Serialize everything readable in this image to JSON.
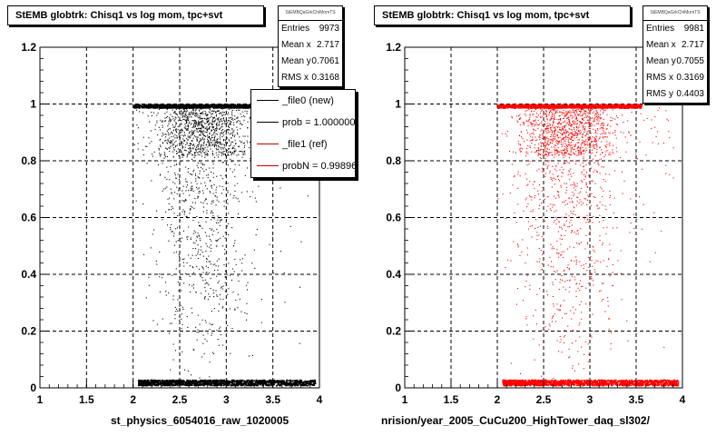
{
  "panels": [
    {
      "title": "StEMB globtrk: Chisq1 vs log mom, tpc+svt",
      "stats": {
        "header": "StEMBQaGrkChiMomTS",
        "rows": [
          {
            "label": "Entries",
            "value": "9973"
          },
          {
            "label": "Mean x",
            "value": "2.717"
          },
          {
            "label": "Mean y",
            "value": "0.7061"
          },
          {
            "label": "RMS x",
            "value": "0.3168"
          }
        ]
      },
      "legend": [
        {
          "label": "_file0 (new)",
          "color": "#000000"
        },
        {
          "label": "prob = 1.000000",
          "color": "#000000"
        },
        {
          "label": "_file1 (ref)",
          "color": "#cc0000"
        },
        {
          "label": "probN = 0.998960",
          "color": "#cc0000"
        }
      ],
      "xlabel": "st_physics_6054016_raw_1020005"
    },
    {
      "title": "StEMB globtrk: Chisq1 vs log mom, tpc+svt",
      "stats": {
        "header": "StEMBQaGrkChiMomTS",
        "rows": [
          {
            "label": "Entries",
            "value": "9981"
          },
          {
            "label": "Mean x",
            "value": "2.717"
          },
          {
            "label": "Mean y",
            "value": "0.7055"
          },
          {
            "label": "RMS x",
            "value": "0.3169"
          },
          {
            "label": "RMS y",
            "value": "0.4403"
          }
        ]
      },
      "xlabel": "nrision/year_2005_CuCu200_HighTower_daq_sl302/"
    }
  ],
  "chart_data": [
    {
      "type": "scatter",
      "title": "StEMB globtrk: Chisq1 vs log mom, tpc+svt",
      "xlabel": "st_physics_6054016_raw_1020005",
      "ylabel": "",
      "xlim": [
        1,
        4
      ],
      "ylim": [
        0,
        1.2
      ],
      "xticks": [
        "1",
        "1.5",
        "2",
        "2.5",
        "3",
        "3.5",
        "4"
      ],
      "yticks": [
        "0",
        "0.2",
        "0.4",
        "0.6",
        "0.8",
        "1",
        "1.2"
      ],
      "grid": true,
      "series": [
        {
          "color": "#000000",
          "entries": 9973,
          "bands": [
            {
              "y": 1.0,
              "x_range": [
                2.0,
                3.55
              ]
            },
            {
              "y": 0.01,
              "x_range": [
                2.05,
                3.95
              ]
            }
          ],
          "x_range": [
            2.0,
            3.9
          ],
          "y_range": [
            0.0,
            1.0
          ]
        }
      ]
    },
    {
      "type": "scatter",
      "title": "StEMB globtrk: Chisq1 vs log mom, tpc+svt",
      "xlabel": "nrision/year_2005_CuCu200_HighTower_daq_sl302/",
      "ylabel": "",
      "xlim": [
        1,
        4
      ],
      "ylim": [
        0,
        1.2
      ],
      "xticks": [
        "1",
        "1.5",
        "2",
        "2.5",
        "3",
        "3.5",
        "4"
      ],
      "yticks": [
        "0",
        "0.2",
        "0.4",
        "0.6",
        "0.8",
        "1",
        "1.2"
      ],
      "grid": true,
      "series": [
        {
          "color": "#ff0000",
          "entries": 9981,
          "bands": [
            {
              "y": 1.0,
              "x_range": [
                2.0,
                3.55
              ]
            },
            {
              "y": 0.01,
              "x_range": [
                2.05,
                3.95
              ]
            }
          ],
          "x_range": [
            2.0,
            3.9
          ],
          "y_range": [
            0.0,
            1.0
          ]
        }
      ]
    }
  ]
}
